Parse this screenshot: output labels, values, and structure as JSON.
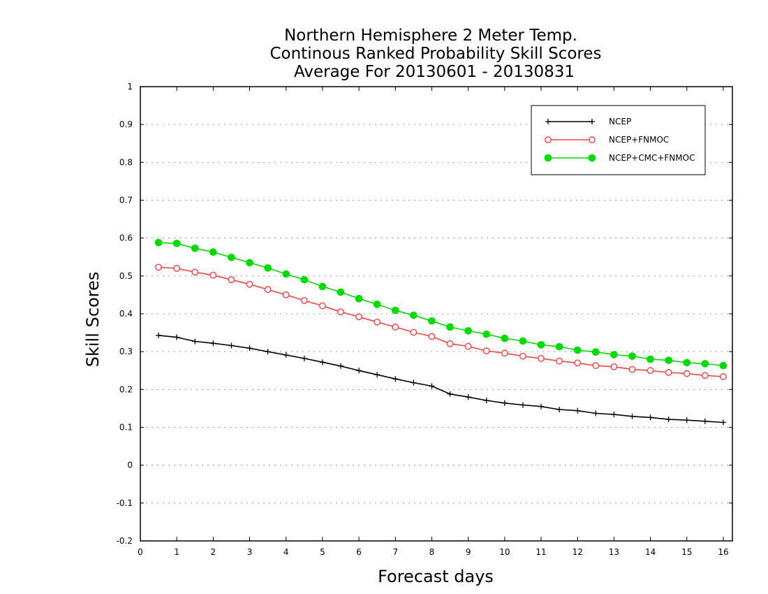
{
  "chart_data": {
    "type": "line",
    "title_lines": [
      "Northern Hemisphere 2 Meter Temp.",
      "Continous Ranked Probability Skill Scores",
      "Average For 20130601 - 20130831"
    ],
    "xlabel": "Forecast days",
    "ylabel": "Skill Scores",
    "xlim": [
      0,
      16.25
    ],
    "ylim": [
      -0.2,
      1.0
    ],
    "x_ticks": [
      "0",
      "1",
      "2",
      "3",
      "4",
      "5",
      "6",
      "7",
      "8",
      "9",
      "10",
      "11",
      "12",
      "13",
      "14",
      "15",
      "16"
    ],
    "y_ticks": [
      "-0.2",
      "-0.1",
      "0",
      "0.1",
      "0.2",
      "0.3",
      "0.4",
      "0.5",
      "0.6",
      "0.7",
      "0.8",
      "0.9",
      "1"
    ],
    "grid": "horizontal dotted",
    "legend_position": "top-right",
    "x": [
      0.5,
      1.0,
      1.5,
      2.0,
      2.5,
      3.0,
      3.5,
      4.0,
      4.5,
      5.0,
      5.5,
      6.0,
      6.5,
      7.0,
      7.5,
      8.0,
      8.5,
      9.0,
      9.5,
      10.0,
      10.5,
      11.0,
      11.5,
      12.0,
      12.5,
      13.0,
      13.5,
      14.0,
      14.5,
      15.0,
      15.5,
      16.0
    ],
    "series": [
      {
        "name": "NCEP",
        "color": "#000000",
        "marker": "plus",
        "values": [
          0.343,
          0.338,
          0.327,
          0.322,
          0.316,
          0.309,
          0.3,
          0.291,
          0.282,
          0.272,
          0.262,
          0.25,
          0.239,
          0.228,
          0.218,
          0.209,
          0.188,
          0.18,
          0.171,
          0.164,
          0.159,
          0.155,
          0.147,
          0.144,
          0.137,
          0.134,
          0.129,
          0.126,
          0.121,
          0.119,
          0.116,
          0.113
        ]
      },
      {
        "name": "NCEP+FNMOC",
        "color": "#ff4040",
        "marker": "open-circle",
        "values": [
          0.523,
          0.52,
          0.51,
          0.502,
          0.49,
          0.478,
          0.464,
          0.45,
          0.435,
          0.421,
          0.405,
          0.392,
          0.378,
          0.365,
          0.351,
          0.34,
          0.321,
          0.314,
          0.302,
          0.296,
          0.288,
          0.282,
          0.275,
          0.27,
          0.263,
          0.26,
          0.253,
          0.25,
          0.245,
          0.242,
          0.237,
          0.234
        ]
      },
      {
        "name": "NCEP+CMC+FNMOC",
        "color": "#00dd00",
        "marker": "filled-circle",
        "values": [
          0.588,
          0.586,
          0.573,
          0.563,
          0.549,
          0.535,
          0.521,
          0.505,
          0.49,
          0.472,
          0.457,
          0.44,
          0.425,
          0.409,
          0.396,
          0.381,
          0.365,
          0.355,
          0.346,
          0.335,
          0.328,
          0.318,
          0.313,
          0.304,
          0.299,
          0.292,
          0.288,
          0.28,
          0.277,
          0.271,
          0.268,
          0.263
        ]
      }
    ]
  }
}
